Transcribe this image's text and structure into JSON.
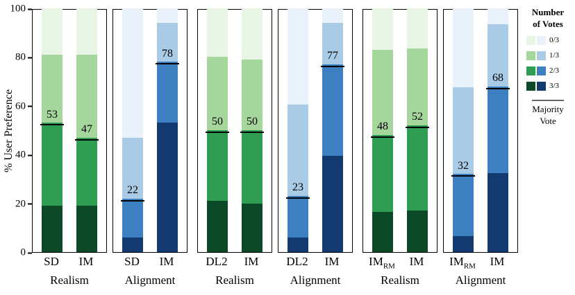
{
  "chart_data": {
    "type": "bar",
    "stacked": true,
    "title": "",
    "ylabel": "% User Preference",
    "ylim": [
      0,
      100
    ],
    "yticks": [
      0,
      20,
      40,
      60,
      80,
      100
    ],
    "grid": false,
    "legend_position": "right",
    "palette": {
      "green": [
        "#e8f5e4",
        "#a5d79d",
        "#2f9e52",
        "#0c4a27"
      ],
      "blue": [
        "#e9f1fa",
        "#a9cbe5",
        "#3c80c1",
        "#123a70"
      ]
    },
    "legend": {
      "title": "Number of Votes",
      "entries": [
        {
          "label": "0/3",
          "level": 0
        },
        {
          "label": "1/3",
          "level": 1
        },
        {
          "label": "2/3",
          "level": 2
        },
        {
          "label": "3/3",
          "level": 3
        }
      ],
      "majority_label": "Majority Vote"
    },
    "panels": [
      {
        "group": "Realism",
        "scheme": "green",
        "bars": [
          {
            "label": "SD",
            "sublabel": "",
            "value": 53,
            "cum_tops": [
              19,
              53,
              81,
              100
            ]
          },
          {
            "label": "IM",
            "sublabel": "",
            "value": 47,
            "cum_tops": [
              19,
              47,
              81,
              100
            ]
          }
        ]
      },
      {
        "group": "Alignment",
        "scheme": "blue",
        "bars": [
          {
            "label": "SD",
            "sublabel": "",
            "value": 22,
            "cum_tops": [
              6,
              22,
              47,
              100
            ]
          },
          {
            "label": "IM",
            "sublabel": "",
            "value": 78,
            "cum_tops": [
              53,
              78,
              94,
              100
            ]
          }
        ]
      },
      {
        "group": "Realism",
        "scheme": "green",
        "bars": [
          {
            "label": "DL2",
            "sublabel": "",
            "value": 50,
            "cum_tops": [
              21,
              50,
              80,
              100
            ]
          },
          {
            "label": "IM",
            "sublabel": "",
            "value": 50,
            "cum_tops": [
              20,
              50,
              79,
              100
            ]
          }
        ]
      },
      {
        "group": "Alignment",
        "scheme": "blue",
        "bars": [
          {
            "label": "DL2",
            "sublabel": "",
            "value": 23,
            "cum_tops": [
              6,
              23,
              60.5,
              100
            ]
          },
          {
            "label": "IM",
            "sublabel": "",
            "value": 77,
            "cum_tops": [
              39.5,
              77,
              94,
              100
            ]
          }
        ]
      },
      {
        "group": "Realism",
        "scheme": "green",
        "bars": [
          {
            "label": "IM",
            "sublabel": "RM",
            "value": 48,
            "cum_tops": [
              16.5,
              48,
              83,
              100
            ]
          },
          {
            "label": "IM",
            "sublabel": "",
            "value": 52,
            "cum_tops": [
              17,
              52,
              83.5,
              100
            ]
          }
        ]
      },
      {
        "group": "Alignment",
        "scheme": "blue",
        "bars": [
          {
            "label": "IM",
            "sublabel": "RM",
            "value": 32,
            "cum_tops": [
              6.5,
              32,
              67.5,
              100
            ]
          },
          {
            "label": "IM",
            "sublabel": "",
            "value": 68,
            "cum_tops": [
              32.5,
              68,
              93.5,
              100
            ]
          }
        ]
      }
    ]
  }
}
